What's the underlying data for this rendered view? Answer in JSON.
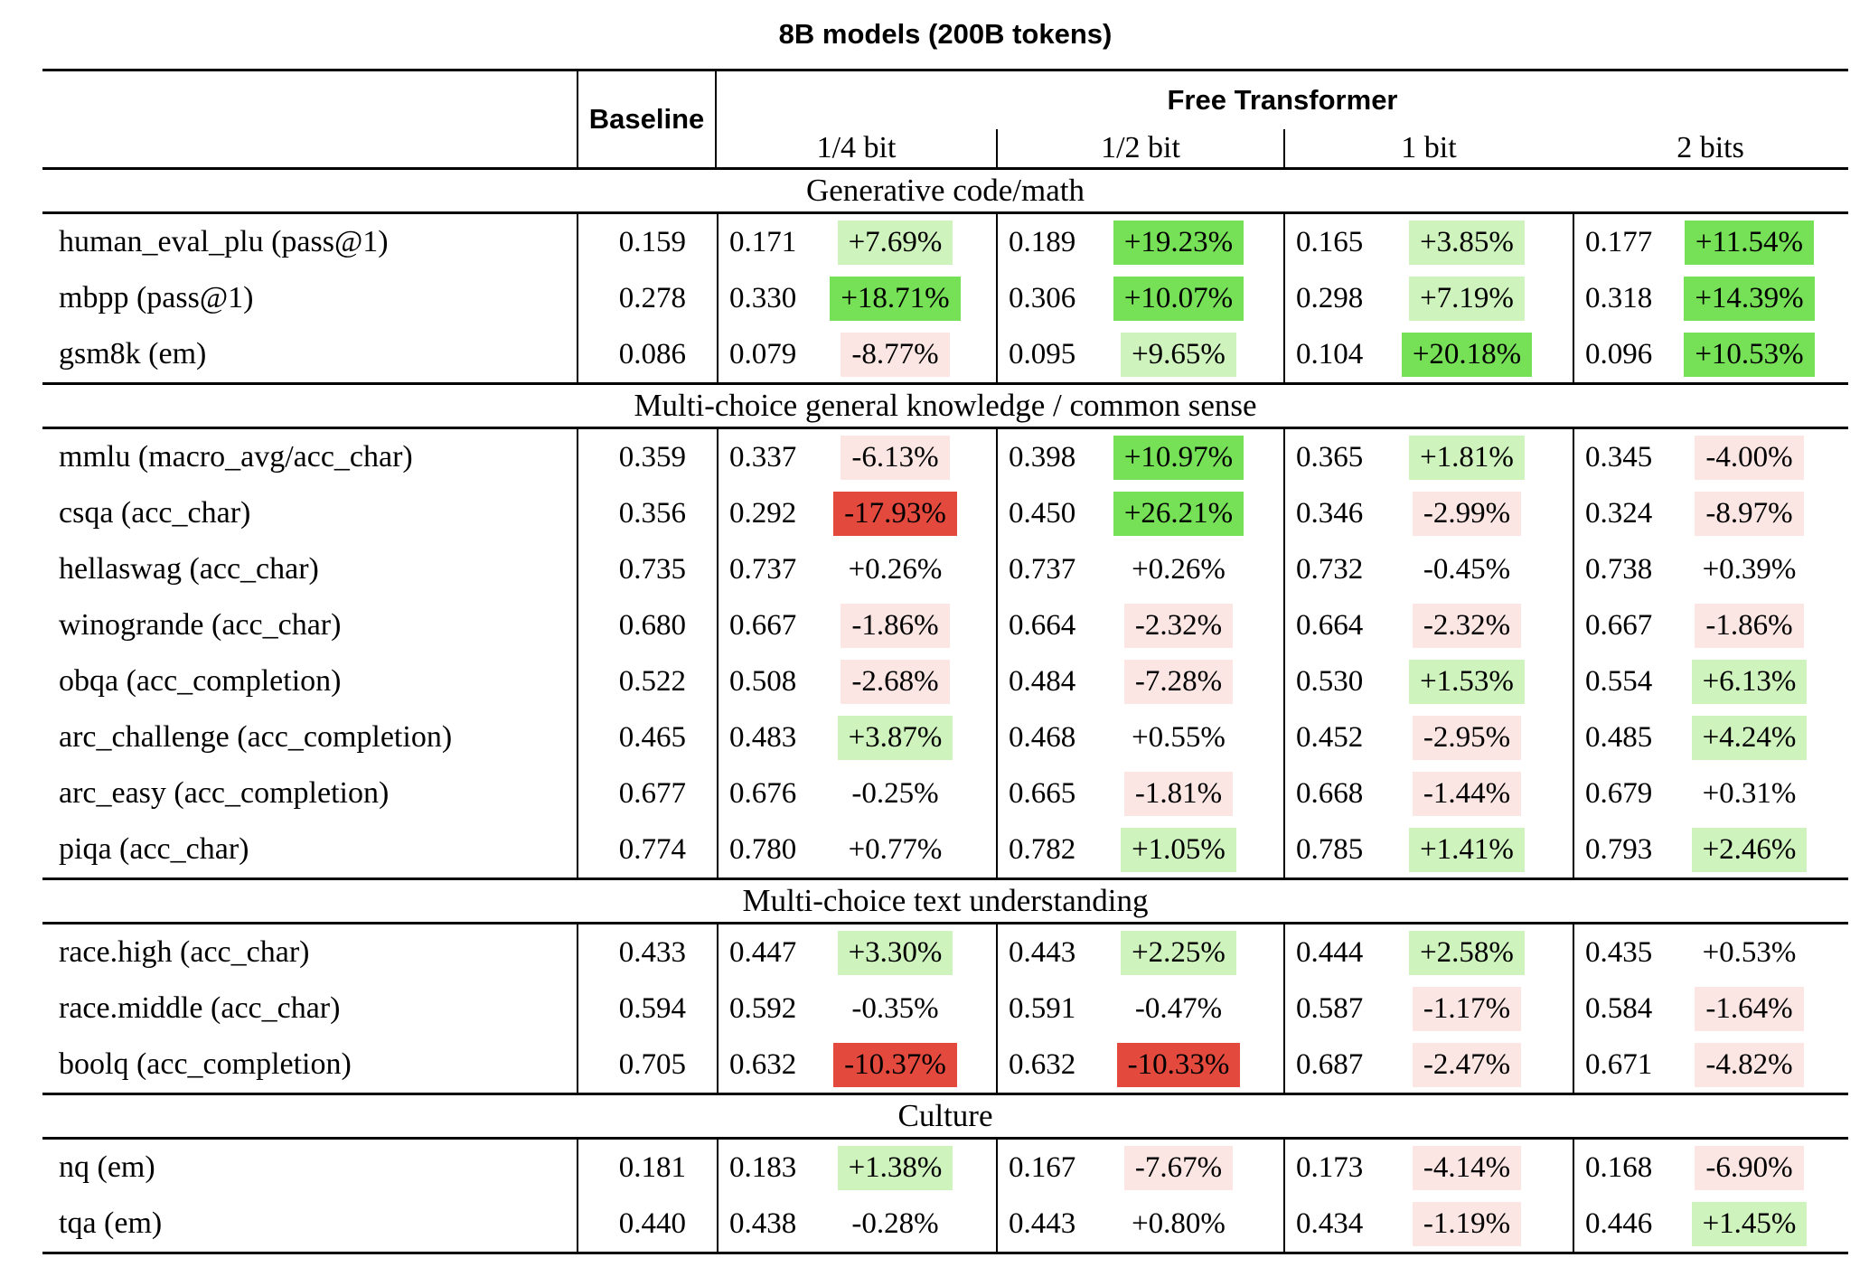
{
  "title": "8B models (200B tokens)",
  "header": {
    "baseline": "Baseline",
    "group": "Free Transformer",
    "bits": [
      "1/4 bit",
      "1/2 bit",
      "1 bit",
      "2 bits"
    ]
  },
  "colors": {
    "strong_green": "#76e057",
    "light_green": "#cff3bd",
    "strong_red": "#e3493c",
    "light_red": "#fbe6e3"
  },
  "sections": [
    {
      "label": "Generative code/math",
      "rows": [
        {
          "name": "human_eval_plu (pass@1)",
          "baseline": "0.159",
          "cells": [
            {
              "v": "0.171",
              "d": "+7.69%",
              "c": "light_green"
            },
            {
              "v": "0.189",
              "d": "+19.23%",
              "c": "strong_green"
            },
            {
              "v": "0.165",
              "d": "+3.85%",
              "c": "light_green"
            },
            {
              "v": "0.177",
              "d": "+11.54%",
              "c": "strong_green"
            }
          ]
        },
        {
          "name": "mbpp (pass@1)",
          "baseline": "0.278",
          "cells": [
            {
              "v": "0.330",
              "d": "+18.71%",
              "c": "strong_green"
            },
            {
              "v": "0.306",
              "d": "+10.07%",
              "c": "strong_green"
            },
            {
              "v": "0.298",
              "d": "+7.19%",
              "c": "light_green"
            },
            {
              "v": "0.318",
              "d": "+14.39%",
              "c": "strong_green"
            }
          ]
        },
        {
          "name": "gsm8k (em)",
          "baseline": "0.086",
          "cells": [
            {
              "v": "0.079",
              "d": "-8.77%",
              "c": "light_red"
            },
            {
              "v": "0.095",
              "d": "+9.65%",
              "c": "light_green"
            },
            {
              "v": "0.104",
              "d": "+20.18%",
              "c": "strong_green"
            },
            {
              "v": "0.096",
              "d": "+10.53%",
              "c": "strong_green"
            }
          ]
        }
      ]
    },
    {
      "label": "Multi-choice general knowledge / common sense",
      "rows": [
        {
          "name": "mmlu (macro_avg/acc_char)",
          "baseline": "0.359",
          "cells": [
            {
              "v": "0.337",
              "d": "-6.13%",
              "c": "light_red"
            },
            {
              "v": "0.398",
              "d": "+10.97%",
              "c": "strong_green"
            },
            {
              "v": "0.365",
              "d": "+1.81%",
              "c": "light_green"
            },
            {
              "v": "0.345",
              "d": "-4.00%",
              "c": "light_red"
            }
          ]
        },
        {
          "name": "csqa (acc_char)",
          "baseline": "0.356",
          "cells": [
            {
              "v": "0.292",
              "d": "-17.93%",
              "c": "strong_red"
            },
            {
              "v": "0.450",
              "d": "+26.21%",
              "c": "strong_green"
            },
            {
              "v": "0.346",
              "d": "-2.99%",
              "c": "light_red"
            },
            {
              "v": "0.324",
              "d": "-8.97%",
              "c": "light_red"
            }
          ]
        },
        {
          "name": "hellaswag (acc_char)",
          "baseline": "0.735",
          "cells": [
            {
              "v": "0.737",
              "d": "+0.26%",
              "c": "none"
            },
            {
              "v": "0.737",
              "d": "+0.26%",
              "c": "none"
            },
            {
              "v": "0.732",
              "d": "-0.45%",
              "c": "none"
            },
            {
              "v": "0.738",
              "d": "+0.39%",
              "c": "none"
            }
          ]
        },
        {
          "name": "winogrande (acc_char)",
          "baseline": "0.680",
          "cells": [
            {
              "v": "0.667",
              "d": "-1.86%",
              "c": "light_red"
            },
            {
              "v": "0.664",
              "d": "-2.32%",
              "c": "light_red"
            },
            {
              "v": "0.664",
              "d": "-2.32%",
              "c": "light_red"
            },
            {
              "v": "0.667",
              "d": "-1.86%",
              "c": "light_red"
            }
          ]
        },
        {
          "name": "obqa (acc_completion)",
          "baseline": "0.522",
          "cells": [
            {
              "v": "0.508",
              "d": "-2.68%",
              "c": "light_red"
            },
            {
              "v": "0.484",
              "d": "-7.28%",
              "c": "light_red"
            },
            {
              "v": "0.530",
              "d": "+1.53%",
              "c": "light_green"
            },
            {
              "v": "0.554",
              "d": "+6.13%",
              "c": "light_green"
            }
          ]
        },
        {
          "name": "arc_challenge (acc_completion)",
          "baseline": "0.465",
          "cells": [
            {
              "v": "0.483",
              "d": "+3.87%",
              "c": "light_green"
            },
            {
              "v": "0.468",
              "d": "+0.55%",
              "c": "none"
            },
            {
              "v": "0.452",
              "d": "-2.95%",
              "c": "light_red"
            },
            {
              "v": "0.485",
              "d": "+4.24%",
              "c": "light_green"
            }
          ]
        },
        {
          "name": "arc_easy (acc_completion)",
          "baseline": "0.677",
          "cells": [
            {
              "v": "0.676",
              "d": "-0.25%",
              "c": "none"
            },
            {
              "v": "0.665",
              "d": "-1.81%",
              "c": "light_red"
            },
            {
              "v": "0.668",
              "d": "-1.44%",
              "c": "light_red"
            },
            {
              "v": "0.679",
              "d": "+0.31%",
              "c": "none"
            }
          ]
        },
        {
          "name": "piqa (acc_char)",
          "baseline": "0.774",
          "cells": [
            {
              "v": "0.780",
              "d": "+0.77%",
              "c": "none"
            },
            {
              "v": "0.782",
              "d": "+1.05%",
              "c": "light_green"
            },
            {
              "v": "0.785",
              "d": "+1.41%",
              "c": "light_green"
            },
            {
              "v": "0.793",
              "d": "+2.46%",
              "c": "light_green"
            }
          ]
        }
      ]
    },
    {
      "label": "Multi-choice text understanding",
      "rows": [
        {
          "name": "race.high (acc_char)",
          "baseline": "0.433",
          "cells": [
            {
              "v": "0.447",
              "d": "+3.30%",
              "c": "light_green"
            },
            {
              "v": "0.443",
              "d": "+2.25%",
              "c": "light_green"
            },
            {
              "v": "0.444",
              "d": "+2.58%",
              "c": "light_green"
            },
            {
              "v": "0.435",
              "d": "+0.53%",
              "c": "none"
            }
          ]
        },
        {
          "name": "race.middle (acc_char)",
          "baseline": "0.594",
          "cells": [
            {
              "v": "0.592",
              "d": "-0.35%",
              "c": "none"
            },
            {
              "v": "0.591",
              "d": "-0.47%",
              "c": "none"
            },
            {
              "v": "0.587",
              "d": "-1.17%",
              "c": "light_red"
            },
            {
              "v": "0.584",
              "d": "-1.64%",
              "c": "light_red"
            }
          ]
        },
        {
          "name": "boolq (acc_completion)",
          "baseline": "0.705",
          "cells": [
            {
              "v": "0.632",
              "d": "-10.37%",
              "c": "strong_red"
            },
            {
              "v": "0.632",
              "d": "-10.33%",
              "c": "strong_red"
            },
            {
              "v": "0.687",
              "d": "-2.47%",
              "c": "light_red"
            },
            {
              "v": "0.671",
              "d": "-4.82%",
              "c": "light_red"
            }
          ]
        }
      ]
    },
    {
      "label": "Culture",
      "rows": [
        {
          "name": "nq (em)",
          "baseline": "0.181",
          "cells": [
            {
              "v": "0.183",
              "d": "+1.38%",
              "c": "light_green"
            },
            {
              "v": "0.167",
              "d": "-7.67%",
              "c": "light_red"
            },
            {
              "v": "0.173",
              "d": "-4.14%",
              "c": "light_red"
            },
            {
              "v": "0.168",
              "d": "-6.90%",
              "c": "light_red"
            }
          ]
        },
        {
          "name": "tqa (em)",
          "baseline": "0.440",
          "cells": [
            {
              "v": "0.438",
              "d": "-0.28%",
              "c": "none"
            },
            {
              "v": "0.443",
              "d": "+0.80%",
              "c": "none"
            },
            {
              "v": "0.434",
              "d": "-1.19%",
              "c": "light_red"
            },
            {
              "v": "0.446",
              "d": "+1.45%",
              "c": "light_green"
            }
          ]
        }
      ]
    }
  ]
}
